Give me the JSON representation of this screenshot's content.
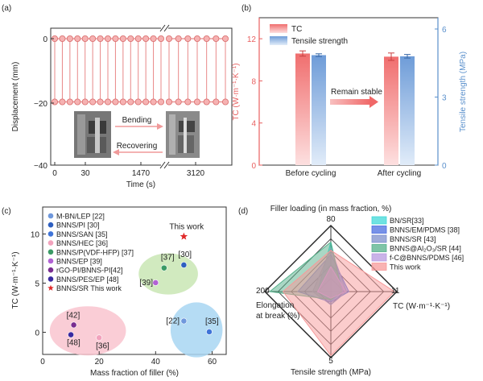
{
  "chart_data": [
    {
      "panel": "a",
      "type": "line",
      "panel_label": "(a)",
      "xlabel": "Time (s)",
      "ylabel": "Displacement (mm)",
      "ylim": [
        -40,
        0
      ],
      "yticks": [
        "0",
        "−20",
        "−40"
      ],
      "xticks": [
        "0",
        "30",
        "1470",
        "3120"
      ],
      "series": [
        {
          "name": "upper displacement",
          "value": 0
        },
        {
          "name": "lower displacement",
          "value": -20
        }
      ],
      "cycles_per_segment": [
        13,
        9,
        12
      ],
      "annotations": {
        "bending": "Bending",
        "recovering": "Recovering"
      },
      "colors": {
        "line": "#e88888",
        "marker_fill": "#f6b2b2",
        "marker_edge": "#d86a6a"
      }
    },
    {
      "panel": "b",
      "type": "bar",
      "panel_label": "(b)",
      "categories": [
        "Before cycling",
        "After cycling"
      ],
      "series": [
        {
          "name": "TC",
          "values": [
            10.6,
            10.3
          ],
          "errors": [
            0.25,
            0.35
          ],
          "axis": "left",
          "color": "#f27c7c"
        },
        {
          "name": "Tensile strength",
          "values": [
            4.85,
            4.8
          ],
          "errors": [
            0.06,
            0.08
          ],
          "axis": "right",
          "color": "#7ea6d9"
        }
      ],
      "ylabel": "TC (W·m⁻¹·K⁻¹)",
      "ylim": [
        0,
        14
      ],
      "yticks": [
        "0",
        "4",
        "8",
        "12"
      ],
      "y2label": "Tensile strength (MPa)",
      "y2lim": [
        0,
        6.5
      ],
      "y2ticks": [
        "0",
        "3",
        "6"
      ],
      "annotation": "Remain stable",
      "colors": {
        "left_axis": "#e86060",
        "right_axis": "#5a90cc",
        "arrow": "#f08080"
      }
    },
    {
      "panel": "c",
      "type": "scatter",
      "panel_label": "(c)",
      "xlabel": "Mass fraction of filler (%)",
      "ylabel": "TC (W·m⁻¹·K⁻¹)",
      "xlim": [
        0,
        65
      ],
      "ylim": [
        -1.5,
        13.5
      ],
      "xticks": [
        "0",
        "20",
        "40",
        "60"
      ],
      "yticks": [
        "0",
        "5",
        "10"
      ],
      "points": [
        {
          "name": "M-BN/LEP [22]",
          "label": "[22]",
          "x": 50,
          "y": 1.9,
          "color": "#6f98dc"
        },
        {
          "name": "BNNS/PI [30]",
          "label": "[30]",
          "x": 50,
          "y": 7.6,
          "color": "#2e5fc0"
        },
        {
          "name": "BNNS/SAN [35]",
          "label": "[35]",
          "x": 59,
          "y": 0.8,
          "color": "#3f74d8"
        },
        {
          "name": "BNNS/HEC [36]",
          "label": "[36]",
          "x": 20,
          "y": 0.2,
          "color": "#f2a3bd"
        },
        {
          "name": "BNNS/P(VDF-HFP) [37]",
          "label": "[37]",
          "x": 43,
          "y": 7.3,
          "color": "#3a9a65"
        },
        {
          "name": "BNNS/EP [39]",
          "label": "[39]",
          "x": 40,
          "y": 5.8,
          "color": "#b262d4"
        },
        {
          "name": "rGO-PI/BNNS-PI[42]",
          "label": "[42]",
          "x": 11,
          "y": 1.5,
          "color": "#7a2d90"
        },
        {
          "name": "BNNS/PES/EP [48]",
          "label": "[48]",
          "x": 10,
          "y": 0.5,
          "color": "#3a2aa0"
        },
        {
          "name": "BNNS/SR This work",
          "label": "This work",
          "x": 50,
          "y": 10.5,
          "color": "#e02a2a",
          "marker": "star"
        }
      ],
      "regions": [
        {
          "name": "pink region",
          "color": "#f9c4cf"
        },
        {
          "name": "green region",
          "color": "#c9e6b4"
        },
        {
          "name": "blue region",
          "color": "#a8d6f2"
        }
      ]
    },
    {
      "panel": "d",
      "type": "radar",
      "panel_label": "(d)",
      "axes": [
        {
          "name": "Filler loading (in mass fraction, %)",
          "max_label": "80",
          "max": 80
        },
        {
          "name": "TC (W·m⁻¹·K⁻¹)",
          "max_label": "11",
          "max": 11
        },
        {
          "name": "Tensile strength (MPa)",
          "max_label": "5",
          "max": 5
        },
        {
          "name": "Elongation at break (%)",
          "max_label": "200",
          "max": 200
        }
      ],
      "axis_titles": {
        "top": "Filler loading (in mass fraction, %)",
        "right": "TC (W·m⁻¹·K⁻¹)",
        "bottom": "Tensile strength (MPa)",
        "left_line1": "Elongation",
        "left_line2": "at break (%)"
      },
      "series": [
        {
          "name": "BN/SR[33]",
          "values": [
            60,
            2.0,
            0.7,
            40
          ],
          "color": "#3fd8d8"
        },
        {
          "name": "BNNS/EM/PDMS [38]",
          "values": [
            45,
            3.0,
            0.8,
            100
          ],
          "color": "#4a6ce0"
        },
        {
          "name": "BNNS/SR [43]",
          "values": [
            52,
            2.6,
            1.0,
            55
          ],
          "color": "#7d8fcc"
        },
        {
          "name": "BNNS@Al₂O₃/SR [44]",
          "values": [
            60,
            1.8,
            0.6,
            185
          ],
          "color": "#54b08a"
        },
        {
          "name": "f-C@BNNS/PDMS [46]",
          "values": [
            30,
            2.5,
            0.5,
            40
          ],
          "color": "#b89ae0"
        },
        {
          "name": "This work",
          "values": [
            50,
            10.6,
            4.85,
            145
          ],
          "color": "#f79a9a"
        }
      ]
    }
  ]
}
